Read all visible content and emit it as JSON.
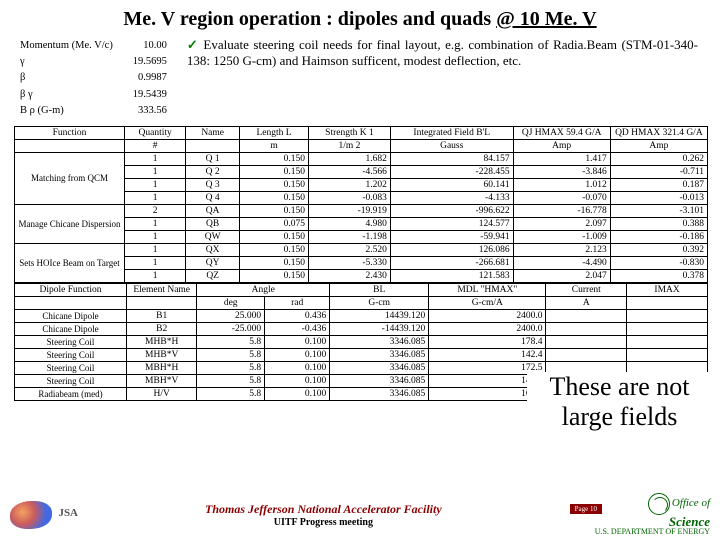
{
  "title_a": "Me. V region operation : dipoles and quads ",
  "title_b": "@ 10 Me. V",
  "params": {
    "rows": [
      [
        "Momentum (Me. V/c)",
        "10.00"
      ],
      [
        "γ",
        "19.5695"
      ],
      [
        "β",
        "0.9987"
      ],
      [
        "β γ",
        "19.5439"
      ],
      [
        "B ρ (G-m)",
        "333.56"
      ]
    ]
  },
  "bullet": "Evaluate steering coil needs for final layout, e.g. combination of Radia.Beam (STM-01-340-138: 1250 G-cm) and Haimson sufficent, modest deflection, etc.",
  "table1": {
    "head1": [
      "Function",
      "Quantity",
      "Name",
      "Length L",
      "Strength K 1",
      "Integrated Field B'L",
      "QJ HMAX 59.4 G/A",
      "QD HMAX 321.4 G/A"
    ],
    "head2": [
      "",
      "#",
      "",
      "m",
      "1/m 2",
      "Gauss",
      "Amp",
      "Amp"
    ],
    "cols_w": [
      86,
      48,
      42,
      54,
      64,
      96,
      76,
      76
    ],
    "groups": [
      {
        "fn": "Matching from QCM",
        "rows": [
          [
            "1",
            "Q 1",
            "0.150",
            "1.682",
            "84.157",
            "1.417",
            "0.262"
          ],
          [
            "1",
            "Q 2",
            "0.150",
            "-4.566",
            "-228.455",
            "-3.846",
            "-0.711"
          ],
          [
            "1",
            "Q 3",
            "0.150",
            "1.202",
            "60.141",
            "1.012",
            "0.187"
          ],
          [
            "1",
            "Q 4",
            "0.150",
            "-0.083",
            "-4.133",
            "-0.070",
            "-0.013"
          ]
        ]
      },
      {
        "fn": "Manage Chicane Dispersion",
        "rows": [
          [
            "2",
            "QA",
            "0.150",
            "-19.919",
            "-996.622",
            "-16.778",
            "-3.101"
          ],
          [
            "1",
            "QB",
            "0.075",
            "4.980",
            "124.577",
            "2.097",
            "0.388"
          ],
          [
            "1",
            "QW",
            "0.150",
            "-1.198",
            "-59.941",
            "-1.009",
            "-0.186"
          ]
        ]
      },
      {
        "fn": "Sets HOIce Beam on Target",
        "rows": [
          [
            "1",
            "QX",
            "0.150",
            "2.520",
            "126.086",
            "2.123",
            "0.392"
          ],
          [
            "1",
            "QY",
            "0.150",
            "-5.330",
            "-266.681",
            "-4.490",
            "-0.830"
          ],
          [
            "1",
            "QZ",
            "0.150",
            "2.430",
            "121.583",
            "2.047",
            "0.378"
          ]
        ]
      }
    ]
  },
  "table2": {
    "head1": [
      "Dipole Function",
      "Element Name",
      "Angle",
      "",
      "BL",
      "MDL \"HMAX\"",
      "Current",
      "IMAX"
    ],
    "head2": [
      "",
      "",
      "deg",
      "rad",
      "G-cm",
      "G-cm/A",
      "A",
      ""
    ],
    "cols_w": [
      86,
      54,
      52,
      50,
      76,
      90,
      62,
      62
    ],
    "rows": [
      [
        "Chicane Dipole",
        "B1",
        "25.000",
        "0.436",
        "14439.120",
        "2400.0",
        "",
        ""
      ],
      [
        "Chicane Dipole",
        "B2",
        "-25.000",
        "-0.436",
        "-14439.120",
        "2400.0",
        "",
        ""
      ],
      [
        "Steering Coil",
        "MHB*H",
        "5.8",
        "0.100",
        "3346.085",
        "178.4",
        "",
        ""
      ],
      [
        "Steering Coil",
        "MHB*V",
        "5.8",
        "0.100",
        "3346.085",
        "142.4",
        "",
        ""
      ],
      [
        "Steering Coil",
        "MBH*H",
        "5.8",
        "0.100",
        "3346.085",
        "172.5",
        "",
        ""
      ],
      [
        "Steering Coil",
        "MBH*V",
        "5.8",
        "0.100",
        "3346.085",
        "147.2",
        "",
        ""
      ],
      [
        "Radiabeam (med)",
        "H/V",
        "5.8",
        "0.100",
        "3346.085",
        "169.3",
        "",
        ""
      ]
    ]
  },
  "overlay": "These are not large fields",
  "footer": {
    "lab": "Thomas Jefferson National Accelerator Facility",
    "sub": "UITF Progress meeting",
    "office1": "Office of",
    "office2": "Science",
    "doe": "U.S. DEPARTMENT OF ENERGY"
  },
  "page": "Page 10"
}
